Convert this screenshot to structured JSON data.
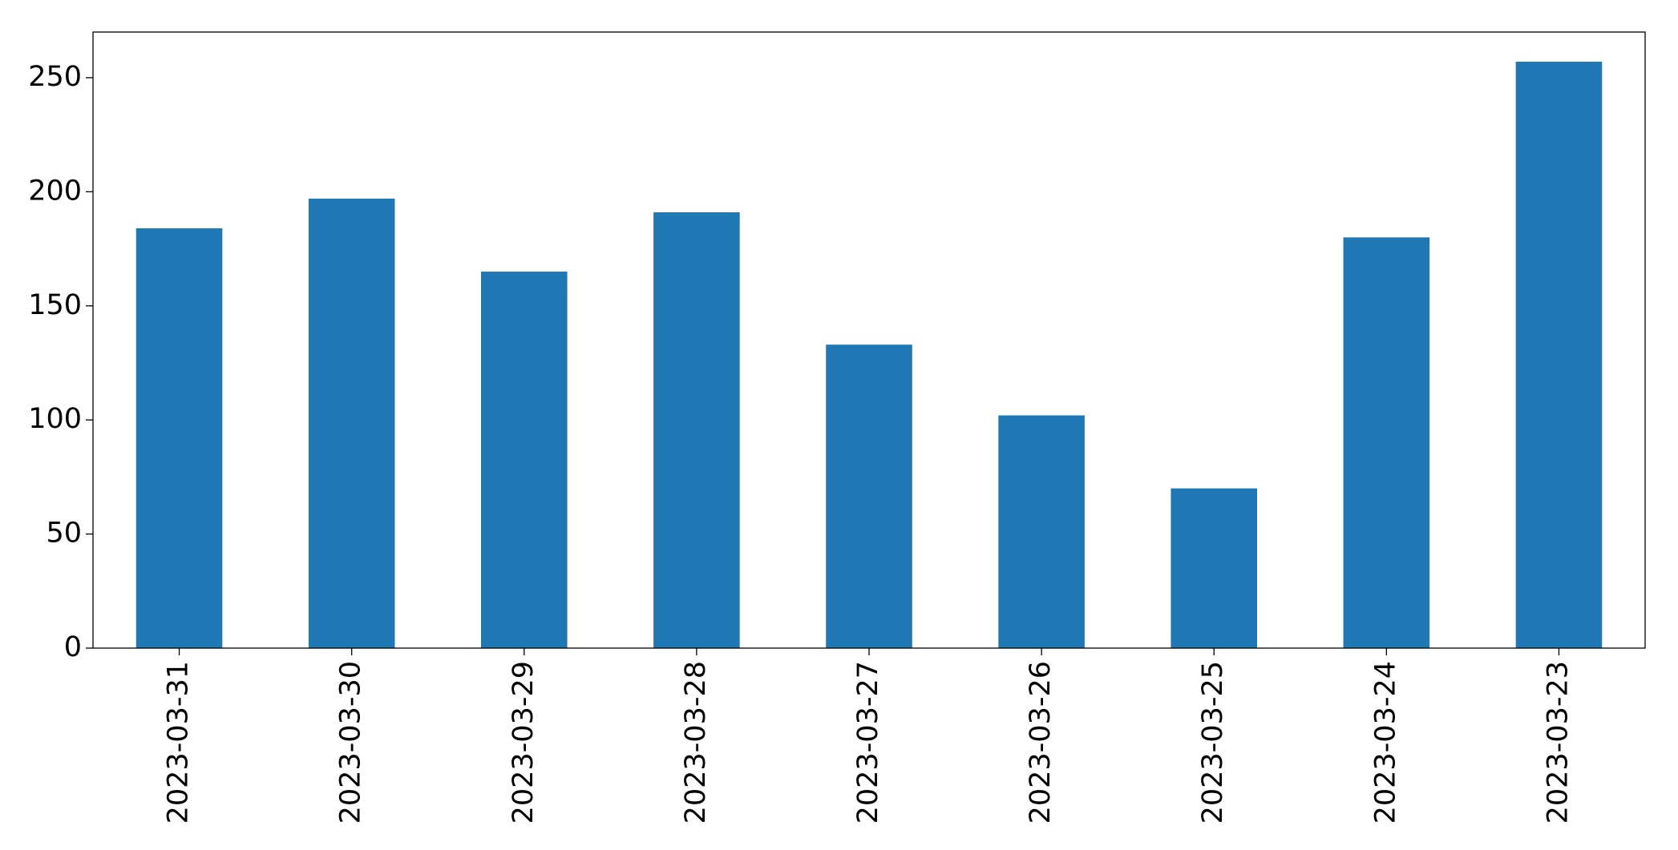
{
  "chart_data": {
    "type": "bar",
    "categories": [
      "2023-03-31",
      "2023-03-30",
      "2023-03-29",
      "2023-03-28",
      "2023-03-27",
      "2023-03-26",
      "2023-03-25",
      "2023-03-24",
      "2023-03-23"
    ],
    "values": [
      184,
      197,
      165,
      191,
      133,
      102,
      70,
      180,
      257
    ],
    "color": "#1f77b4",
    "ylim": [
      0,
      270
    ],
    "yticks": [
      0,
      50,
      100,
      150,
      200,
      250
    ],
    "grid": false
  }
}
